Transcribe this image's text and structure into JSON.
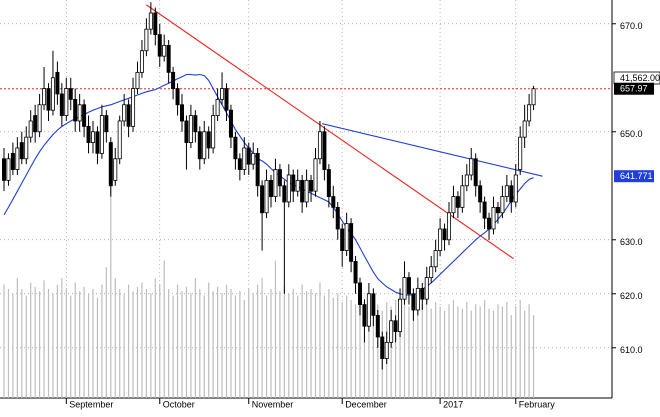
{
  "chart_data": {
    "type": "candlestick",
    "readout": "41,562.00",
    "categories": [
      null,
      null,
      null,
      null,
      null,
      null,
      null,
      null,
      null,
      null,
      null,
      null,
      null,
      null,
      "September",
      null,
      null,
      null,
      null,
      null,
      null,
      null,
      null,
      null,
      null,
      null,
      null,
      null,
      null,
      null,
      null,
      null,
      null,
      null,
      null,
      "October",
      null,
      null,
      null,
      null,
      null,
      null,
      null,
      null,
      null,
      null,
      null,
      null,
      null,
      null,
      null,
      null,
      null,
      null,
      null,
      "November",
      null,
      null,
      null,
      null,
      null,
      null,
      null,
      null,
      null,
      null,
      null,
      null,
      null,
      null,
      null,
      null,
      null,
      null,
      null,
      null,
      "December",
      null,
      null,
      null,
      null,
      null,
      null,
      null,
      null,
      null,
      null,
      null,
      null,
      null,
      null,
      null,
      null,
      null,
      null,
      null,
      null,
      null,
      "2017",
      null,
      null,
      null,
      null,
      null,
      null,
      null,
      null,
      null,
      null,
      null,
      null,
      null,
      null,
      null,
      null,
      "February",
      null,
      null,
      null,
      null
    ],
    "ohlc": [
      [
        645,
        647,
        639,
        641
      ],
      [
        641,
        646,
        640,
        645
      ],
      [
        646,
        648,
        642,
        643
      ],
      [
        643,
        649,
        642,
        647
      ],
      [
        648,
        650,
        644,
        645
      ],
      [
        645,
        651,
        644,
        649
      ],
      [
        649,
        654,
        648,
        652
      ],
      [
        653,
        655,
        648,
        650
      ],
      [
        650,
        657,
        649,
        655
      ],
      [
        655,
        662,
        654,
        658
      ],
      [
        658,
        659,
        652,
        654
      ],
      [
        654,
        665,
        653,
        660
      ],
      [
        661,
        663,
        655,
        657
      ],
      [
        657,
        659,
        651,
        653
      ],
      [
        653,
        660,
        652,
        658
      ],
      [
        658,
        660,
        654,
        656
      ],
      [
        656,
        658,
        650,
        652
      ],
      [
        652,
        657,
        650,
        655
      ],
      [
        655,
        656,
        649,
        651
      ],
      [
        651,
        653,
        646,
        648
      ],
      [
        648,
        652,
        646,
        650
      ],
      [
        650,
        651,
        644,
        646
      ],
      [
        646,
        655,
        645,
        653
      ],
      [
        653,
        654,
        648,
        650
      ],
      [
        648,
        649,
        638,
        640
      ],
      [
        641,
        647,
        640,
        645
      ],
      [
        645,
        653,
        644,
        652
      ],
      [
        652,
        657,
        651,
        655
      ],
      [
        655,
        656,
        649,
        651
      ],
      [
        651,
        660,
        650,
        658
      ],
      [
        658,
        663,
        657,
        661
      ],
      [
        661,
        667,
        660,
        665
      ],
      [
        665,
        671,
        664,
        669
      ],
      [
        669,
        674,
        668,
        672
      ],
      [
        672,
        673,
        666,
        668
      ],
      [
        668,
        670,
        662,
        664
      ],
      [
        664,
        668,
        663,
        666
      ],
      [
        666,
        667,
        659,
        661
      ],
      [
        661,
        662,
        656,
        658
      ],
      [
        658,
        659,
        653,
        655
      ],
      [
        655,
        657,
        650,
        652
      ],
      [
        652,
        653,
        643,
        648
      ],
      [
        648,
        655,
        647,
        653
      ],
      [
        653,
        654,
        648,
        650
      ],
      [
        650,
        651,
        643,
        645
      ],
      [
        645,
        652,
        644,
        650
      ],
      [
        650,
        651,
        645,
        647
      ],
      [
        647,
        655,
        646,
        653
      ],
      [
        653,
        658,
        652,
        656
      ],
      [
        656,
        661,
        655,
        658
      ],
      [
        658,
        659,
        652,
        654
      ],
      [
        654,
        655,
        647,
        649
      ],
      [
        649,
        650,
        643,
        645
      ],
      [
        645,
        646,
        641,
        643
      ],
      [
        643,
        649,
        642,
        647
      ],
      [
        647,
        648,
        642,
        644
      ],
      [
        644,
        648,
        643,
        646
      ],
      [
        646,
        647,
        638,
        640
      ],
      [
        640,
        641,
        628,
        635
      ],
      [
        635,
        643,
        634,
        641
      ],
      [
        641,
        642,
        636,
        638
      ],
      [
        638,
        645,
        637,
        643
      ],
      [
        643,
        644,
        638,
        640
      ],
      [
        640,
        641,
        620,
        637
      ],
      [
        637,
        644,
        636,
        642
      ],
      [
        642,
        643,
        637,
        639
      ],
      [
        639,
        643,
        638,
        641
      ],
      [
        641,
        642,
        635,
        637
      ],
      [
        637,
        643,
        636,
        641
      ],
      [
        641,
        642,
        637,
        639
      ],
      [
        639,
        647,
        638,
        645
      ],
      [
        645,
        652,
        644,
        650
      ],
      [
        650,
        651,
        641,
        643
      ],
      [
        643,
        644,
        636,
        638
      ],
      [
        638,
        640,
        634,
        636
      ],
      [
        636,
        637,
        630,
        632
      ],
      [
        632,
        633,
        625,
        628
      ],
      [
        628,
        635,
        627,
        633
      ],
      [
        633,
        634,
        624,
        626
      ],
      [
        626,
        627,
        620,
        622
      ],
      [
        622,
        623,
        616,
        618
      ],
      [
        618,
        619,
        611,
        614
      ],
      [
        614,
        622,
        613,
        620
      ],
      [
        620,
        621,
        614,
        616
      ],
      [
        616,
        617,
        610,
        612
      ],
      [
        612,
        613,
        606,
        608
      ],
      [
        608,
        613,
        607,
        611
      ],
      [
        611,
        617,
        610,
        615
      ],
      [
        615,
        616,
        611,
        613
      ],
      [
        613,
        621,
        612,
        619
      ],
      [
        619,
        626,
        618,
        623
      ],
      [
        623,
        624,
        618,
        620
      ],
      [
        620,
        621,
        615,
        617
      ],
      [
        617,
        623,
        616,
        621
      ],
      [
        621,
        622,
        617,
        619
      ],
      [
        619,
        625,
        618,
        623
      ],
      [
        623,
        627,
        622,
        625
      ],
      [
        625,
        630,
        624,
        628
      ],
      [
        628,
        634,
        627,
        632
      ],
      [
        632,
        633,
        628,
        630
      ],
      [
        630,
        637,
        629,
        635
      ],
      [
        635,
        640,
        634,
        638
      ],
      [
        638,
        639,
        634,
        636
      ],
      [
        636,
        642,
        635,
        640
      ],
      [
        640,
        644,
        639,
        642
      ],
      [
        642,
        647,
        641,
        645
      ],
      [
        645,
        646,
        638,
        640
      ],
      [
        640,
        641,
        635,
        637
      ],
      [
        637,
        638,
        632,
        634
      ],
      [
        634,
        635,
        630,
        632
      ],
      [
        632,
        638,
        631,
        636
      ],
      [
        636,
        637,
        633,
        635
      ],
      [
        635,
        640,
        634,
        638
      ],
      [
        638,
        642,
        637,
        640
      ],
      [
        640,
        641,
        635,
        637
      ],
      [
        637,
        644,
        636,
        642
      ],
      [
        643,
        651,
        642,
        649
      ],
      [
        649,
        655,
        647,
        652
      ],
      [
        652,
        657,
        651,
        655
      ],
      [
        655,
        658.5,
        654,
        657.97
      ]
    ],
    "volume": [
      52,
      50,
      48,
      55,
      50,
      47,
      53,
      51,
      49,
      54,
      50,
      48,
      52,
      55,
      50,
      47,
      53,
      49,
      51,
      48,
      50,
      46,
      52,
      60,
      100,
      55,
      50,
      48,
      52,
      49,
      51,
      53,
      50,
      48,
      55,
      52,
      63,
      50,
      47,
      52,
      49,
      51,
      48,
      55,
      50,
      47,
      53,
      49,
      51,
      48,
      52,
      50,
      47,
      49,
      45,
      50,
      48,
      52,
      55,
      47,
      50,
      63,
      49,
      51,
      48,
      50,
      47,
      52,
      49,
      50,
      48,
      53,
      47,
      50,
      46,
      48,
      44,
      47,
      45,
      43,
      46,
      44,
      42,
      45,
      43,
      40,
      44,
      42,
      45,
      41,
      43,
      42,
      44,
      40,
      43,
      45,
      41,
      44,
      42,
      40,
      43,
      45,
      42,
      41,
      44,
      40,
      43,
      42,
      45,
      41,
      40,
      43,
      42,
      44,
      38,
      42,
      45,
      40,
      43,
      38
    ],
    "ma": {
      "color": "#1f3fd6",
      "values": [
        634.6,
        636,
        637.5,
        639,
        640.5,
        642,
        643.5,
        645,
        646.3,
        647.5,
        648.5,
        649.5,
        650.3,
        651,
        651.5,
        652,
        652.4,
        652.8,
        653.2,
        653.6,
        654,
        654.3,
        654.6,
        654.8,
        655,
        655.3,
        655.6,
        655.9,
        656.2,
        656.5,
        656.8,
        657.1,
        657.4,
        657.6,
        657.8,
        658.2,
        658.6,
        659,
        659.4,
        659.8,
        660.2,
        660.6,
        660.6,
        660.5,
        660.6,
        660.4,
        659.5,
        658,
        656.5,
        655,
        653.5,
        652,
        650.4,
        649.2,
        648,
        647,
        646,
        645,
        644.6,
        644,
        643.2,
        642.5,
        641.8,
        641.2,
        640.6,
        640.2,
        639.8,
        639.4,
        639,
        638.6,
        638.2,
        637.8,
        637.4,
        637,
        636,
        634.8,
        633.5,
        632.2,
        631.2,
        630,
        628.5,
        627,
        625.5,
        624,
        622.8,
        622,
        621.3,
        620.8,
        620.3,
        620,
        619.8,
        619.8,
        619.8,
        620.2,
        620.8,
        621.4,
        622,
        622.8,
        623.6,
        624.4,
        625.2,
        626,
        626.8,
        627.6,
        628.4,
        629.2,
        630,
        630.7,
        631.3,
        632,
        632.8,
        633.8,
        634.8,
        636,
        637.2,
        638.4,
        639.4,
        640.4,
        641.2,
        641.5
      ]
    },
    "trendlines": [
      {
        "color": "#e8261c",
        "x": [
          32,
          114.5
        ],
        "y": [
          673.5,
          626.5
        ]
      },
      {
        "color": "#1f3fd6",
        "x": [
          71.5,
          121
        ],
        "y": [
          651.5,
          641.771
        ]
      }
    ],
    "last_price": {
      "value": 657.97,
      "color": "#e8261c"
    },
    "trend_value": {
      "value": 641.771,
      "color": "#1f3fd6"
    },
    "ylim": [
      600.7,
      674.4
    ],
    "yticks": [
      {
        "value": 670,
        "label": "670.0"
      },
      {
        "value": 650,
        "label": "650.0"
      },
      {
        "value": 630,
        "label": "630.0"
      },
      {
        "value": 620,
        "label": "620.0"
      },
      {
        "value": 610,
        "label": "610.0"
      }
    ],
    "grid": true
  }
}
